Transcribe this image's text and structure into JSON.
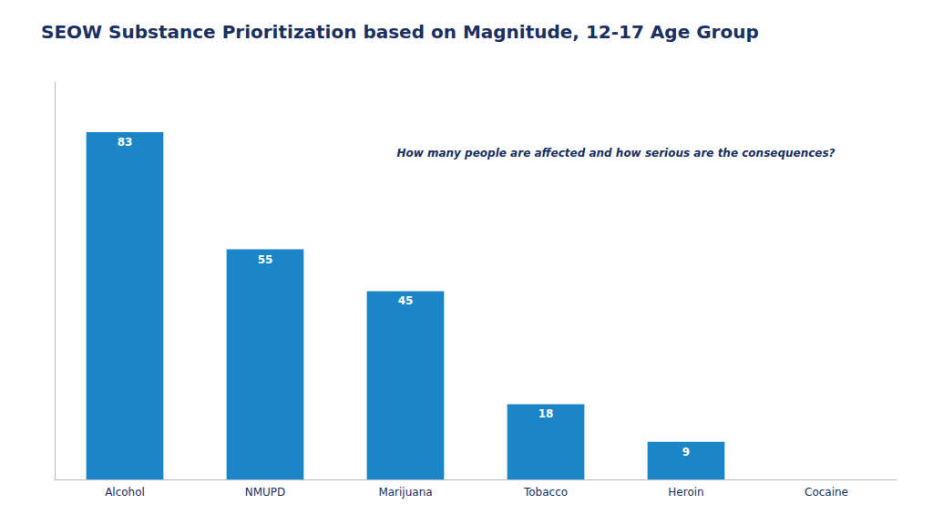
{
  "chart_data": {
    "type": "bar",
    "title": "SEOW Substance Prioritization based on Magnitude, 12-17 Age Group",
    "annotation": "How many people are affected and how serious are the consequences?",
    "categories": [
      "Alcohol",
      "NMUPD",
      "Marijuana",
      "Tobacco",
      "Heroin",
      "Cocaine"
    ],
    "values": [
      83,
      55,
      45,
      18,
      9,
      0
    ],
    "color": "#1a86c8",
    "ylim": [
      0,
      95
    ],
    "grid": false,
    "data_labels": true,
    "tick_labels": "x"
  }
}
